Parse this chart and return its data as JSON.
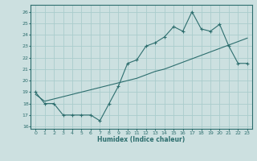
{
  "xlabel": "Humidex (Indice chaleur)",
  "ylabel": "",
  "bg_color": "#cce0e0",
  "grid_color": "#aacccc",
  "line_color": "#2d6e6e",
  "xlim": [
    -0.5,
    23.5
  ],
  "ylim": [
    15.8,
    26.6
  ],
  "yticks": [
    16,
    17,
    18,
    19,
    20,
    21,
    22,
    23,
    24,
    25,
    26
  ],
  "xticks": [
    0,
    1,
    2,
    3,
    4,
    5,
    6,
    7,
    8,
    9,
    10,
    11,
    12,
    13,
    14,
    15,
    16,
    17,
    18,
    19,
    20,
    21,
    22,
    23
  ],
  "series1_x": [
    0,
    1,
    2,
    3,
    4,
    5,
    6,
    7,
    8,
    9,
    10,
    11,
    12,
    13,
    14,
    15,
    16,
    17,
    18,
    19,
    20,
    21,
    22,
    23
  ],
  "series1_y": [
    19.0,
    18.0,
    18.0,
    17.0,
    17.0,
    17.0,
    17.0,
    16.5,
    18.0,
    19.5,
    21.5,
    21.8,
    23.0,
    23.3,
    23.8,
    24.7,
    24.3,
    26.0,
    24.5,
    24.3,
    24.9,
    23.0,
    21.5,
    21.5
  ],
  "series2_x": [
    0,
    1,
    2,
    3,
    4,
    5,
    6,
    7,
    8,
    9,
    10,
    11,
    12,
    13,
    14,
    15,
    16,
    17,
    18,
    19,
    20,
    21,
    22,
    23
  ],
  "series2_y": [
    18.8,
    18.2,
    18.4,
    18.6,
    18.8,
    19.0,
    19.2,
    19.4,
    19.6,
    19.8,
    20.0,
    20.2,
    20.5,
    20.8,
    21.0,
    21.3,
    21.6,
    21.9,
    22.2,
    22.5,
    22.8,
    23.1,
    23.4,
    23.7
  ]
}
